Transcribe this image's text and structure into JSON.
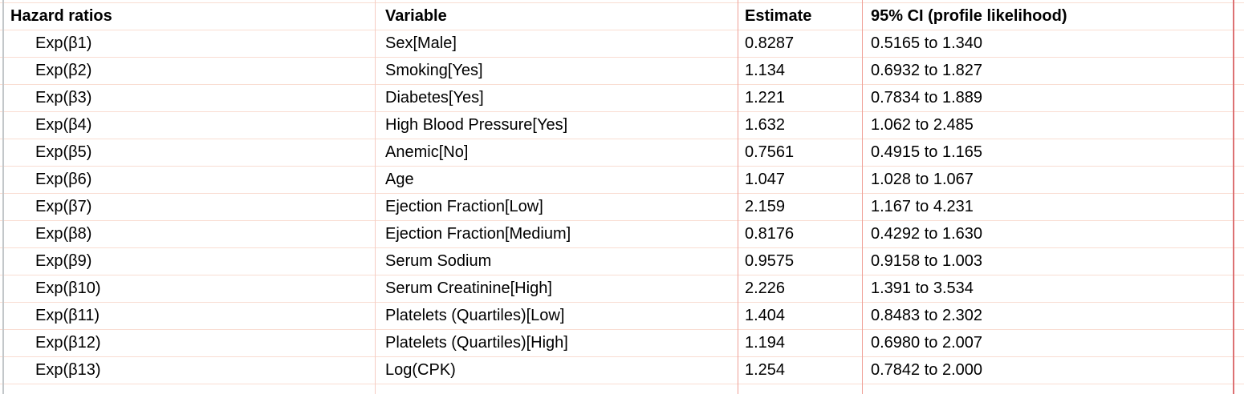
{
  "table": {
    "columns": [
      {
        "id": "hazard_ratio",
        "label": "Hazard ratios"
      },
      {
        "id": "variable",
        "label": "Variable"
      },
      {
        "id": "estimate",
        "label": "Estimate"
      },
      {
        "id": "ci",
        "label": "95% CI (profile likelihood)"
      }
    ],
    "rows": [
      {
        "hazard_ratio": "Exp(β1)",
        "variable": "Sex[Male]",
        "estimate": "0.8287",
        "ci": "0.5165 to 1.340"
      },
      {
        "hazard_ratio": "Exp(β2)",
        "variable": "Smoking[Yes]",
        "estimate": "1.134",
        "ci": "0.6932 to 1.827"
      },
      {
        "hazard_ratio": "Exp(β3)",
        "variable": "Diabetes[Yes]",
        "estimate": "1.221",
        "ci": "0.7834 to 1.889"
      },
      {
        "hazard_ratio": "Exp(β4)",
        "variable": "High Blood Pressure[Yes]",
        "estimate": "1.632",
        "ci": "1.062 to 2.485"
      },
      {
        "hazard_ratio": "Exp(β5)",
        "variable": "Anemic[No]",
        "estimate": "0.7561",
        "ci": "0.4915 to 1.165"
      },
      {
        "hazard_ratio": "Exp(β6)",
        "variable": "Age",
        "estimate": "1.047",
        "ci": "1.028 to 1.067"
      },
      {
        "hazard_ratio": "Exp(β7)",
        "variable": "Ejection Fraction[Low]",
        "estimate": "2.159",
        "ci": "1.167 to 4.231"
      },
      {
        "hazard_ratio": "Exp(β8)",
        "variable": "Ejection Fraction[Medium]",
        "estimate": "0.8176",
        "ci": "0.4292 to 1.630"
      },
      {
        "hazard_ratio": "Exp(β9)",
        "variable": "Serum Sodium",
        "estimate": "0.9575",
        "ci": "0.9158 to 1.003"
      },
      {
        "hazard_ratio": "Exp(β10)",
        "variable": "Serum Creatinine[High]",
        "estimate": "2.226",
        "ci": "1.391 to 3.534"
      },
      {
        "hazard_ratio": "Exp(β11)",
        "variable": "Platelets (Quartiles)[Low]",
        "estimate": "1.404",
        "ci": "0.8483 to 2.302"
      },
      {
        "hazard_ratio": "Exp(β12)",
        "variable": "Platelets (Quartiles)[High]",
        "estimate": "1.194",
        "ci": "0.6980 to 2.007"
      },
      {
        "hazard_ratio": "Exp(β13)",
        "variable": "Log(CPK)",
        "estimate": "1.254",
        "ci": "0.7842 to 2.000"
      }
    ]
  },
  "colors": {
    "background": "#ffffff",
    "text": "#000000",
    "grid_horizontal": "#f9ddd2",
    "grid_vertical_light": "#f5cdc3",
    "grid_vertical": "#efa097",
    "panel_border_left": "#c3c7ca",
    "panel_border_right": "#dd7173"
  }
}
